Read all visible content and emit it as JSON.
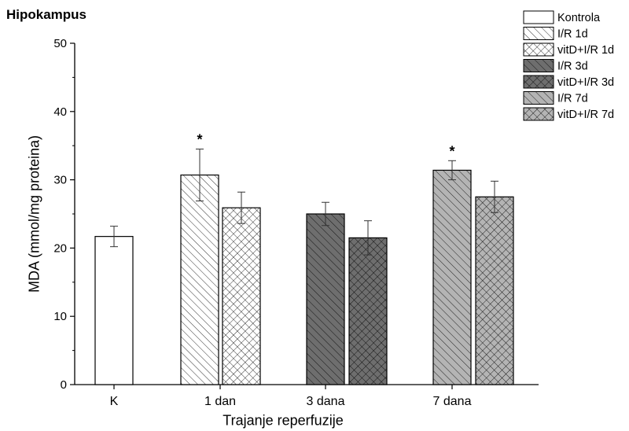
{
  "chart_data": {
    "type": "bar",
    "title": "Hipokampus",
    "xlabel": "Trajanje reperfuzije",
    "ylabel": "MDA (mmol/mg proteina)",
    "ylim": [
      0,
      50
    ],
    "yticks": [
      0,
      10,
      20,
      30,
      40,
      50
    ],
    "grid": false,
    "legend_position": "top-right",
    "categories": [
      "K",
      "1 dan",
      "3 dana",
      "7 dana"
    ],
    "bars": [
      {
        "series": "Kontrola",
        "category": "K",
        "value": 21.7,
        "error": 1.5,
        "significance": ""
      },
      {
        "series": "I/R 1d",
        "category": "1 dan",
        "value": 30.7,
        "error": 3.8,
        "significance": "*"
      },
      {
        "series": "vitD+I/R 1d",
        "category": "1 dan",
        "value": 25.9,
        "error": 2.3,
        "significance": ""
      },
      {
        "series": "I/R 3d",
        "category": "3 dana",
        "value": 25.0,
        "error": 1.7,
        "significance": ""
      },
      {
        "series": "vitD+I/R 3d",
        "category": "3 dana",
        "value": 21.5,
        "error": 2.5,
        "significance": ""
      },
      {
        "series": "I/R 7d",
        "category": "7 dana",
        "value": 31.4,
        "error": 1.4,
        "significance": "*"
      },
      {
        "series": "vitD+I/R 7d",
        "category": "7 dana",
        "value": 27.5,
        "error": 2.3,
        "significance": ""
      }
    ],
    "series": [
      {
        "name": "Kontrola",
        "fill": "#ffffff",
        "pattern": "none"
      },
      {
        "name": "I/R 1d",
        "fill": "#ffffff",
        "pattern": "diagonal"
      },
      {
        "name": "vitD+I/R 1d",
        "fill": "#ffffff",
        "pattern": "crosshatch"
      },
      {
        "name": "I/R 3d",
        "fill": "#6e6e6e",
        "pattern": "diagonal"
      },
      {
        "name": "vitD+I/R 3d",
        "fill": "#6e6e6e",
        "pattern": "crosshatch"
      },
      {
        "name": "I/R 7d",
        "fill": "#b4b4b4",
        "pattern": "diagonal"
      },
      {
        "name": "vitD+I/R 7d",
        "fill": "#b4b4b4",
        "pattern": "crosshatch"
      }
    ]
  }
}
